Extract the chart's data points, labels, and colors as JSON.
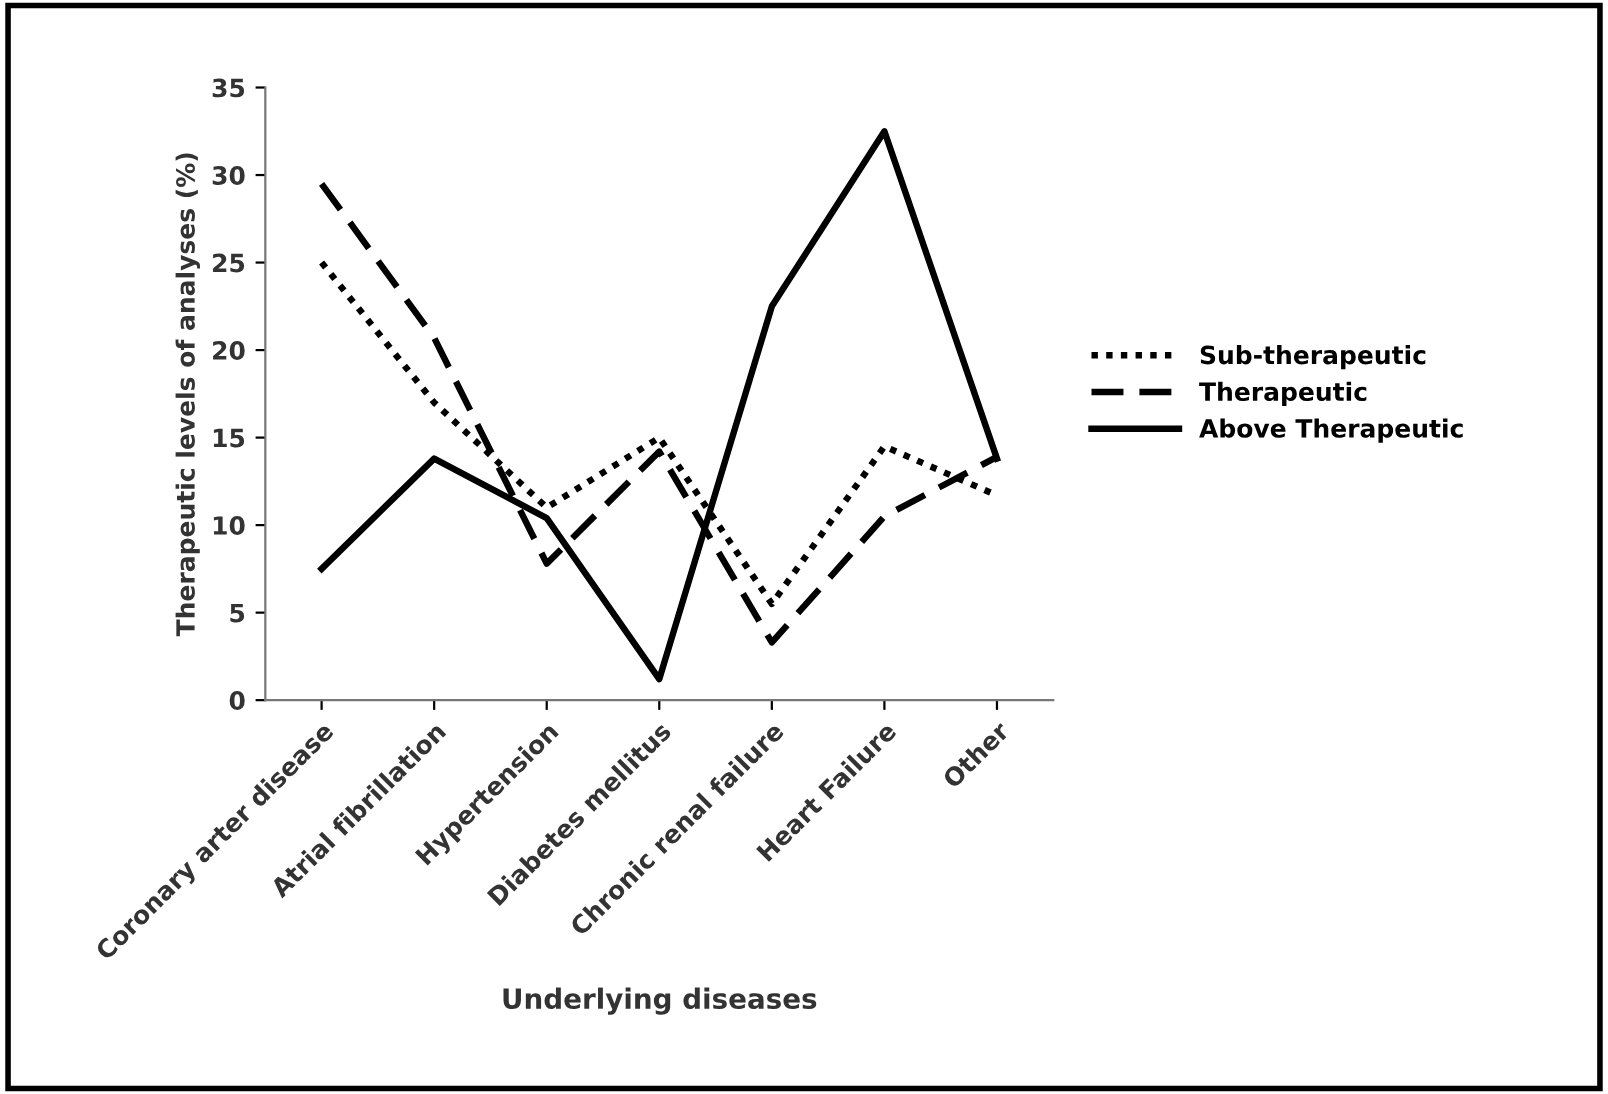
{
  "chart_data": {
    "type": "line",
    "xlabel": "Underlying diseases",
    "ylabel": "Therapeutic levels of analyses (%)",
    "categories": [
      "Coronary arter disease",
      "Atrial fibrillation",
      "Hypertension",
      "Diabetes mellitus",
      "Chronic renal failure",
      "Heart Failure",
      "Other"
    ],
    "series": [
      {
        "name": "Sub-therapeutic",
        "color": "#000000",
        "line_style": "dotted",
        "values": [
          25,
          17,
          11,
          15,
          5.5,
          14.5,
          11.7
        ]
      },
      {
        "name": "Therapeutic",
        "color": "#000000",
        "line_style": "dashed",
        "values": [
          29.5,
          20.7,
          7.8,
          14.2,
          3.3,
          10.5,
          13.9
        ]
      },
      {
        "name": "Above Therapeutic",
        "color": "#000000",
        "line_style": "solid",
        "values": [
          7.5,
          13.8,
          10.4,
          1.2,
          22.5,
          32.5,
          13.8
        ]
      }
    ],
    "ylim": [
      0,
      35
    ],
    "yticks": [
      0,
      5,
      10,
      15,
      20,
      25,
      30,
      35
    ],
    "grid": false,
    "legend": "right",
    "marker": "none"
  }
}
